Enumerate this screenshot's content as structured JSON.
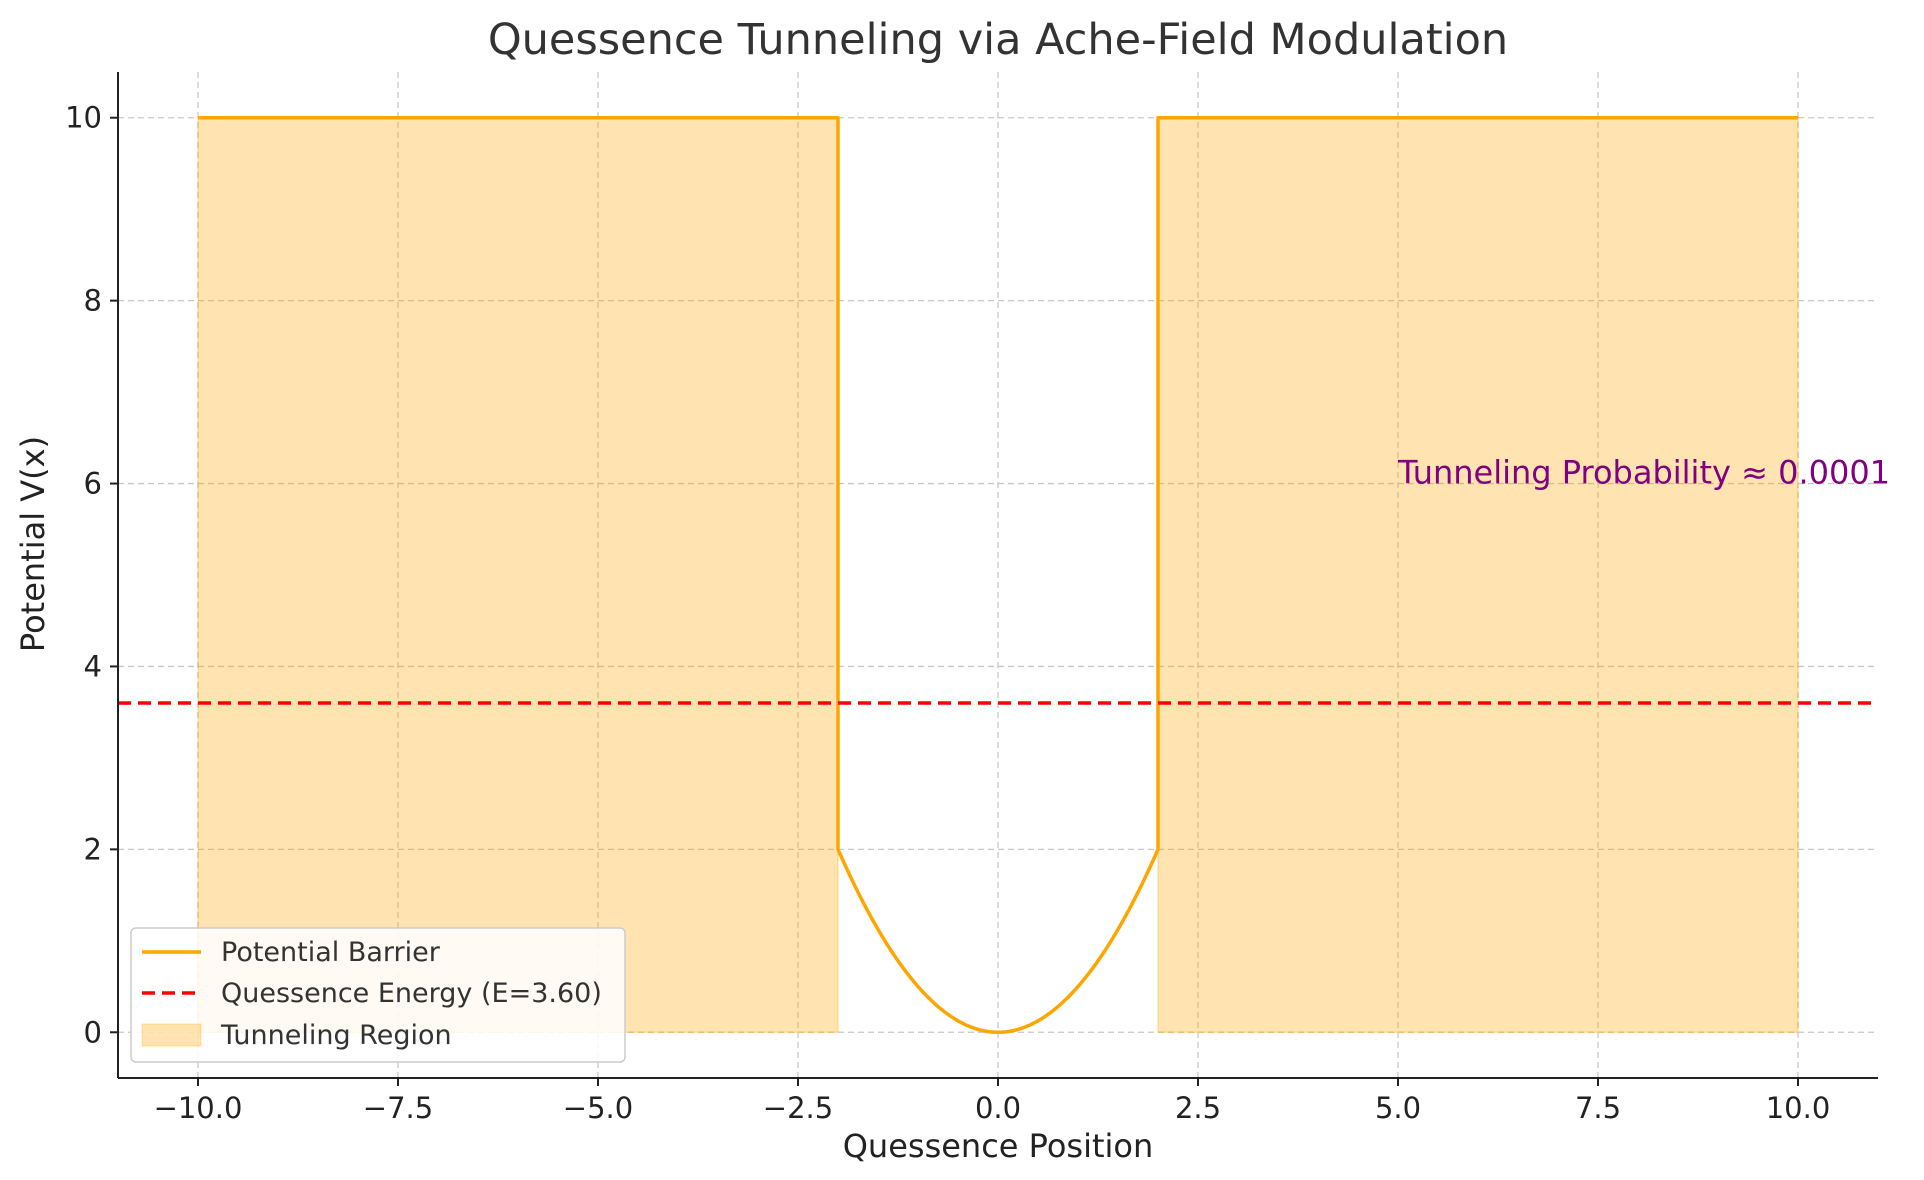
{
  "chart_data": {
    "type": "line",
    "title": "Quessence Tunneling via Ache-Field Modulation",
    "xlabel": "Quessence Position",
    "ylabel": "Potential V(x)",
    "xlim": [
      -11,
      11
    ],
    "ylim": [
      -0.5,
      10.5
    ],
    "xticks": [
      -10,
      -7.5,
      -5,
      -2.5,
      0,
      2.5,
      5,
      7.5,
      10
    ],
    "xtick_labels": [
      "−10.0",
      "−7.5",
      "−5.0",
      "−2.5",
      "0.0",
      "2.5",
      "5.0",
      "7.5",
      "10.0"
    ],
    "yticks": [
      0,
      2,
      4,
      6,
      8,
      10
    ],
    "ytick_labels": [
      "0",
      "2",
      "4",
      "6",
      "8",
      "10"
    ],
    "grid": true,
    "series": [
      {
        "name": "Potential Barrier",
        "style": "solid",
        "color": "#FFA500",
        "x": [
          -10,
          -2,
          -2,
          -1.75,
          -1.5,
          -1.25,
          -1,
          -0.75,
          -0.5,
          -0.25,
          0,
          0.25,
          0.5,
          0.75,
          1,
          1.25,
          1.5,
          1.75,
          2,
          2,
          10
        ],
        "y": [
          10,
          10,
          2,
          1.53,
          1.13,
          0.78,
          0.5,
          0.28,
          0.13,
          0.03,
          0,
          0.03,
          0.13,
          0.28,
          0.5,
          0.78,
          1.13,
          1.53,
          2,
          10,
          10
        ]
      },
      {
        "name": "Quessence Energy (E=3.60)",
        "style": "dashed",
        "color": "#FF0000",
        "y_constant": 3.6
      },
      {
        "name": "Tunneling Region",
        "style": "fill",
        "color": "#FFA500",
        "regions": [
          {
            "x": [
              -10,
              -2
            ],
            "y": [
              0,
              10
            ]
          },
          {
            "x": [
              2,
              10
            ],
            "y": [
              0,
              10
            ]
          }
        ]
      }
    ],
    "annotations": [
      {
        "text": "Tunneling Probability ≈ 0.0001",
        "x": 5,
        "y": 6,
        "color": "#800080"
      }
    ],
    "legend": {
      "placement": "lower-left",
      "entries": [
        "Potential Barrier",
        "Quessence Energy (E=3.60)",
        "Tunneling Region"
      ]
    }
  }
}
